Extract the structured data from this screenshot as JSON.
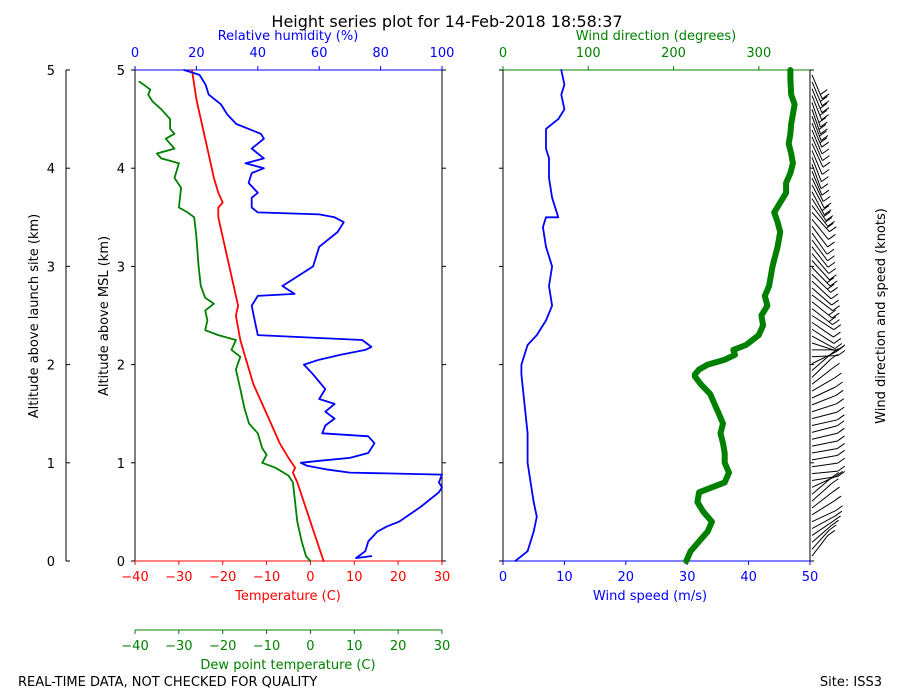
{
  "chart_data": {
    "type": "line",
    "title": "Height series plot for 14-Feb-2018 18:58:37",
    "footer_left": "REAL-TIME DATA, NOT CHECKED FOR QUALITY",
    "footer_right": "Site: ISS3",
    "colors": {
      "temp": "#ff0000",
      "dew": "#008000",
      "rh": "#0000ff",
      "wspd": "#0000ff",
      "wdir": "#008000",
      "axis": "#000000"
    },
    "outer_axis": {
      "label": "Altitude above launch site (km)",
      "ylim": [
        0,
        5
      ],
      "ticks": [
        "0",
        "1",
        "2",
        "3",
        "4",
        "5"
      ]
    },
    "left_panel": {
      "ylabel": "Altitude above MSL (km)",
      "ylim": [
        0,
        5
      ],
      "yticks": [
        "0",
        "1",
        "2",
        "3",
        "4",
        "5"
      ],
      "temp_axis": {
        "label": "Temperature (C)",
        "xlim": [
          -40,
          30
        ],
        "ticks": [
          "−40",
          "−30",
          "−20",
          "−10",
          "0",
          "10",
          "20",
          "30"
        ]
      },
      "dew_axis": {
        "label": "Dew point temperature (C)",
        "xlim": [
          -40,
          30
        ],
        "ticks": [
          "−40",
          "−30",
          "−20",
          "−10",
          "0",
          "10",
          "20",
          "30"
        ]
      },
      "rh_axis": {
        "label": "Relative humidity (%)",
        "xlim": [
          0,
          100
        ],
        "ticks": [
          "0",
          "20",
          "40",
          "60",
          "80",
          "100"
        ]
      },
      "series": [
        {
          "name": "Temperature",
          "axis": "temp",
          "points": [
            [
              3,
              0
            ],
            [
              1.5,
              0.2
            ],
            [
              0,
              0.4
            ],
            [
              -1.5,
              0.6
            ],
            [
              -3,
              0.8
            ],
            [
              -4,
              0.9
            ],
            [
              -3.5,
              0.95
            ],
            [
              -5,
              1.05
            ],
            [
              -7,
              1.2
            ],
            [
              -9,
              1.4
            ],
            [
              -11,
              1.6
            ],
            [
              -13,
              1.8
            ],
            [
              -14,
              1.95
            ],
            [
              -15,
              2.1
            ],
            [
              -16,
              2.25
            ],
            [
              -17,
              2.5
            ],
            [
              -16.5,
              2.6
            ],
            [
              -17,
              2.7
            ],
            [
              -18,
              2.9
            ],
            [
              -19,
              3.1
            ],
            [
              -20,
              3.3
            ],
            [
              -21,
              3.5
            ],
            [
              -21,
              3.6
            ],
            [
              -20,
              3.65
            ],
            [
              -21,
              3.75
            ],
            [
              -22,
              3.9
            ],
            [
              -23,
              4.1
            ],
            [
              -24,
              4.3
            ],
            [
              -25,
              4.5
            ],
            [
              -26,
              4.7
            ],
            [
              -26.5,
              4.85
            ],
            [
              -27,
              5
            ]
          ]
        },
        {
          "name": "Dew point",
          "axis": "dew",
          "points": [
            [
              0,
              0
            ],
            [
              -1,
              0.05
            ],
            [
              -2,
              0.2
            ],
            [
              -3,
              0.4
            ],
            [
              -3.5,
              0.6
            ],
            [
              -4,
              0.8
            ],
            [
              -5,
              0.87
            ],
            [
              -8,
              0.95
            ],
            [
              -11,
              1.0
            ],
            [
              -10,
              1.08
            ],
            [
              -11,
              1.15
            ],
            [
              -12,
              1.3
            ],
            [
              -14,
              1.4
            ],
            [
              -15,
              1.55
            ],
            [
              -16,
              1.75
            ],
            [
              -17,
              1.95
            ],
            [
              -16,
              2.08
            ],
            [
              -18,
              2.15
            ],
            [
              -17,
              2.25
            ],
            [
              -21,
              2.3
            ],
            [
              -24,
              2.35
            ],
            [
              -23.5,
              2.45
            ],
            [
              -24,
              2.55
            ],
            [
              -22,
              2.62
            ],
            [
              -24,
              2.68
            ],
            [
              -25,
              2.8
            ],
            [
              -25.5,
              3.0
            ],
            [
              -26,
              3.3
            ],
            [
              -26.5,
              3.5
            ],
            [
              -28,
              3.55
            ],
            [
              -30,
              3.6
            ],
            [
              -29.5,
              3.8
            ],
            [
              -31,
              3.9
            ],
            [
              -30,
              4.05
            ],
            [
              -34,
              4.1
            ],
            [
              -35,
              4.15
            ],
            [
              -31,
              4.2
            ],
            [
              -33,
              4.3
            ],
            [
              -31,
              4.35
            ],
            [
              -32,
              4.4
            ],
            [
              -32,
              4.5
            ],
            [
              -34,
              4.6
            ],
            [
              -36,
              4.68
            ],
            [
              -37,
              4.75
            ],
            [
              -36.5,
              4.8
            ],
            [
              -38,
              4.85
            ],
            [
              -39,
              4.88
            ]
          ]
        },
        {
          "name": "Relative humidity",
          "axis": "rh",
          "points": [
            [
              77,
              0.05
            ],
            [
              72,
              0.03
            ],
            [
              75,
              0.1
            ],
            [
              76,
              0.2
            ],
            [
              79,
              0.3
            ],
            [
              82,
              0.35
            ],
            [
              86,
              0.4
            ],
            [
              93,
              0.55
            ],
            [
              99,
              0.7
            ],
            [
              100,
              0.75
            ],
            [
              99,
              0.8
            ],
            [
              100,
              0.88
            ],
            [
              70,
              0.9
            ],
            [
              63,
              0.93
            ],
            [
              56,
              0.97
            ],
            [
              54,
              1.0
            ],
            [
              60,
              1.02
            ],
            [
              70,
              1.05
            ],
            [
              76,
              1.1
            ],
            [
              78,
              1.2
            ],
            [
              76,
              1.27
            ],
            [
              61,
              1.3
            ],
            [
              62,
              1.38
            ],
            [
              65,
              1.45
            ],
            [
              62,
              1.52
            ],
            [
              65,
              1.6
            ],
            [
              60,
              1.65
            ],
            [
              62,
              1.75
            ],
            [
              58,
              1.9
            ],
            [
              55,
              2.0
            ],
            [
              60,
              2.05
            ],
            [
              67,
              2.1
            ],
            [
              75,
              2.15
            ],
            [
              77,
              2.18
            ],
            [
              74,
              2.25
            ],
            [
              40,
              2.3
            ],
            [
              39,
              2.45
            ],
            [
              38,
              2.6
            ],
            [
              40,
              2.7
            ],
            [
              52,
              2.72
            ],
            [
              48,
              2.8
            ],
            [
              53,
              2.9
            ],
            [
              58,
              3.0
            ],
            [
              60,
              3.2
            ],
            [
              66,
              3.35
            ],
            [
              68,
              3.45
            ],
            [
              65,
              3.5
            ],
            [
              60,
              3.53
            ],
            [
              40,
              3.55
            ],
            [
              38,
              3.6
            ],
            [
              38,
              3.7
            ],
            [
              40,
              3.75
            ],
            [
              37,
              3.85
            ],
            [
              38,
              3.95
            ],
            [
              42,
              4.0
            ],
            [
              36,
              4.05
            ],
            [
              42,
              4.1
            ],
            [
              38,
              4.2
            ],
            [
              42,
              4.3
            ],
            [
              41,
              4.35
            ],
            [
              33,
              4.45
            ],
            [
              30,
              4.55
            ],
            [
              28,
              4.65
            ],
            [
              24,
              4.75
            ],
            [
              23,
              4.85
            ],
            [
              21,
              4.95
            ],
            [
              16,
              5.0
            ]
          ]
        }
      ]
    },
    "right_panel": {
      "ylim": [
        0,
        5
      ],
      "wspd_axis": {
        "label": "Wind speed (m/s)",
        "xlim": [
          0,
          50
        ],
        "ticks": [
          "0",
          "10",
          "20",
          "30",
          "40",
          "50"
        ]
      },
      "wdir_axis": {
        "label": "Wind direction (degrees)",
        "xlim": [
          0,
          360
        ],
        "ticks": [
          "0",
          "100",
          "200",
          "300"
        ]
      },
      "series": [
        {
          "name": "Wind speed",
          "axis": "wspd",
          "points": [
            [
              2,
              0
            ],
            [
              4,
              0.1
            ],
            [
              5,
              0.3
            ],
            [
              5.5,
              0.45
            ],
            [
              5,
              0.6
            ],
            [
              4.5,
              0.8
            ],
            [
              4,
              1.0
            ],
            [
              4,
              1.3
            ],
            [
              3.5,
              1.6
            ],
            [
              3,
              1.9
            ],
            [
              3,
              2.0
            ],
            [
              4,
              2.2
            ],
            [
              5.5,
              2.3
            ],
            [
              7,
              2.45
            ],
            [
              8,
              2.6
            ],
            [
              7.5,
              2.8
            ],
            [
              8,
              3.0
            ],
            [
              7,
              3.2
            ],
            [
              6.5,
              3.4
            ],
            [
              7,
              3.5
            ],
            [
              9,
              3.5
            ],
            [
              8,
              3.7
            ],
            [
              7.5,
              3.9
            ],
            [
              7.5,
              4.1
            ],
            [
              7,
              4.2
            ],
            [
              7,
              4.4
            ],
            [
              9,
              4.5
            ],
            [
              10,
              4.6
            ],
            [
              9.5,
              4.75
            ],
            [
              10,
              4.85
            ],
            [
              9.5,
              5
            ]
          ]
        },
        {
          "name": "Wind direction",
          "axis": "wdir",
          "points": [
            [
              215,
              0
            ],
            [
              220,
              0.1
            ],
            [
              240,
              0.3
            ],
            [
              245,
              0.4
            ],
            [
              235,
              0.5
            ],
            [
              228,
              0.6
            ],
            [
              230,
              0.7
            ],
            [
              260,
              0.8
            ],
            [
              265,
              0.9
            ],
            [
              260,
              1.0
            ],
            [
              260,
              1.1
            ],
            [
              258,
              1.2
            ],
            [
              255,
              1.3
            ],
            [
              258,
              1.4
            ],
            [
              253,
              1.5
            ],
            [
              248,
              1.6
            ],
            [
              243,
              1.7
            ],
            [
              232,
              1.8
            ],
            [
              225,
              1.88
            ],
            [
              225,
              1.9
            ],
            [
              230,
              1.95
            ],
            [
              240,
              2.0
            ],
            [
              260,
              2.05
            ],
            [
              272,
              2.1
            ],
            [
              270,
              2.15
            ],
            [
              285,
              2.2
            ],
            [
              300,
              2.3
            ],
            [
              305,
              2.4
            ],
            [
              303,
              2.5
            ],
            [
              310,
              2.6
            ],
            [
              307,
              2.7
            ],
            [
              312,
              2.8
            ],
            [
              316,
              3.0
            ],
            [
              322,
              3.2
            ],
            [
              325,
              3.35
            ],
            [
              322,
              3.45
            ],
            [
              318,
              3.55
            ],
            [
              325,
              3.65
            ],
            [
              332,
              3.75
            ],
            [
              332,
              3.85
            ],
            [
              337,
              3.95
            ],
            [
              340,
              4.05
            ],
            [
              338,
              4.15
            ],
            [
              335,
              4.25
            ],
            [
              337,
              4.35
            ],
            [
              338,
              4.45
            ],
            [
              340,
              4.55
            ],
            [
              342,
              4.65
            ],
            [
              338,
              4.75
            ],
            [
              337,
              4.9
            ],
            [
              337,
              5
            ]
          ]
        }
      ]
    },
    "barbs_label": "Wind direction and speed (knots)"
  }
}
